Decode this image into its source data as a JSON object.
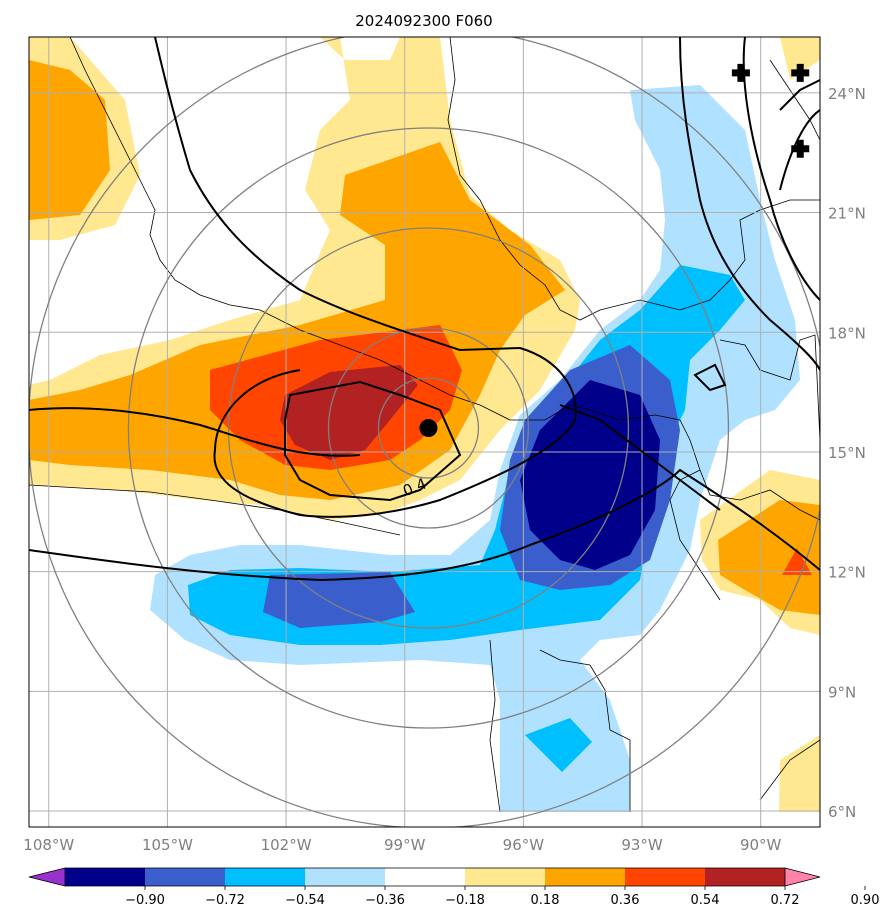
{
  "chart_data": {
    "type": "heatmap",
    "title": "2024092300 F060",
    "map": {
      "lon_range": [
        -108.5,
        -88.5
      ],
      "lat_range": [
        5.6,
        25.4
      ],
      "lon_ticks": [
        -108,
        -105,
        -102,
        -99,
        -96,
        -93,
        -90
      ],
      "lon_tick_labels": [
        "108°W",
        "105°W",
        "102°W",
        "99°W",
        "96°W",
        "93°W",
        "90°W"
      ],
      "lat_ticks": [
        6,
        9,
        12,
        15,
        18,
        21,
        24
      ],
      "lat_tick_labels": [
        "6°N",
        "9°N",
        "12°N",
        "15°N",
        "18°N",
        "21°N",
        "24°N"
      ],
      "grid": true
    },
    "colorbar": {
      "levels": [
        -0.9,
        -0.72,
        -0.54,
        -0.36,
        -0.18,
        0.18,
        0.36,
        0.54,
        0.72,
        0.9
      ],
      "labels": [
        "−0.90",
        "−0.72",
        "−0.54",
        "−0.36",
        "−0.18",
        "0.18",
        "0.36",
        "0.54",
        "0.72",
        "0.90"
      ],
      "colors": [
        "#9932cc",
        "#00008b",
        "#3a5fcd",
        "#00bfff",
        "#b0e2ff",
        "#ffffff",
        "#ffe88f",
        "#ffa500",
        "#ff4500",
        "#b22222",
        "#ff82ab"
      ],
      "extend": "both"
    },
    "contour_labels": [
      {
        "text": "0.4",
        "lon": -98.7,
        "lat": 14.0
      }
    ],
    "center_marker": {
      "lon": -98.4,
      "lat": 15.6
    },
    "cross_markers": [
      {
        "lon": -90.5,
        "lat": 24.5
      },
      {
        "lon": -89.0,
        "lat": 24.5
      },
      {
        "lon": -89.0,
        "lat": 22.6
      }
    ],
    "range_ring_center": {
      "lon": -98.4,
      "lat": 15.6
    }
  }
}
